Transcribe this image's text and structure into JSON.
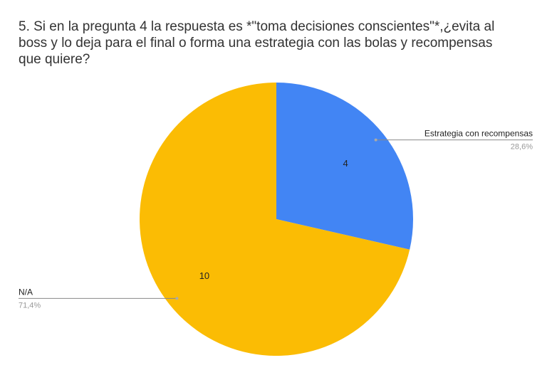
{
  "chart_data": {
    "type": "pie",
    "title_lines": [
      "5. Si en la pregunta 4 la respuesta es *\"toma decisiones conscientes\"*,¿evita al",
      "boss y lo deja para el final o forma una estrategia con las bolas y recompensas",
      "que quiere?"
    ],
    "slices": [
      {
        "label": "Estrategia con recompensas",
        "value": 4,
        "percent_label": "28,6%",
        "color": "#4285f4"
      },
      {
        "label": "N/A",
        "value": 10,
        "percent_label": "71,4%",
        "color": "#fbbc04"
      }
    ],
    "start_angle_deg": 0,
    "direction": "clockwise"
  }
}
